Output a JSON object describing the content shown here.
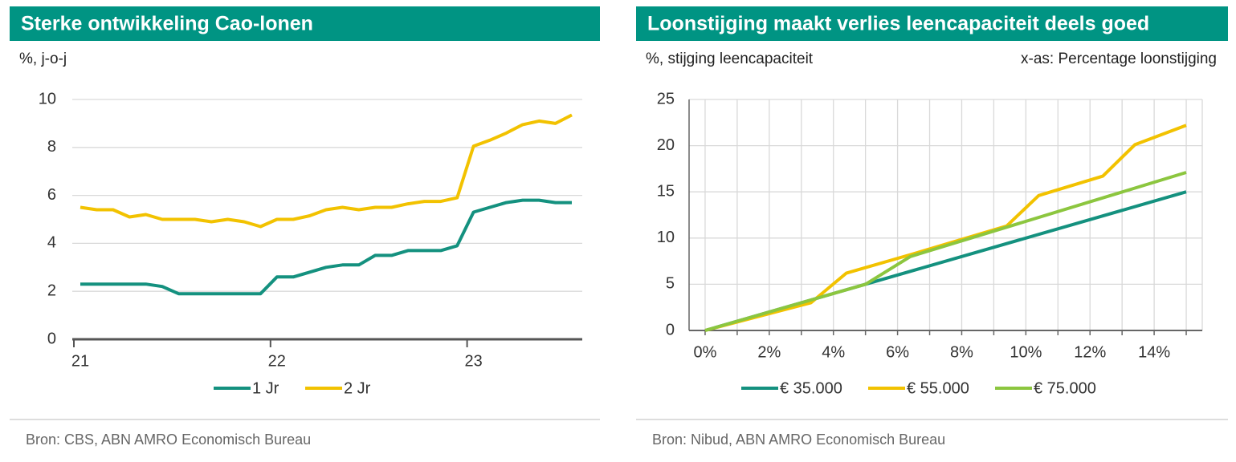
{
  "chart_data": [
    {
      "type": "line",
      "title": "Sterke ontwikkeling Cao-lonen",
      "y_label": "%, j-o-j",
      "source": "Bron: CBS, ABN AMRO Economisch Bureau",
      "categories": [
        "21",
        null,
        null,
        null,
        null,
        null,
        null,
        null,
        null,
        null,
        null,
        null,
        "22",
        null,
        null,
        null,
        null,
        null,
        null,
        null,
        null,
        null,
        null,
        null,
        "23",
        null,
        null,
        null,
        null,
        null,
        null
      ],
      "series": [
        {
          "name": "1 Jr",
          "color": "#14917f",
          "values": [
            2.3,
            2.3,
            2.3,
            2.3,
            2.3,
            2.2,
            1.9,
            1.9,
            1.9,
            1.9,
            1.9,
            1.9,
            2.6,
            2.6,
            2.8,
            3.0,
            3.1,
            3.1,
            3.5,
            3.5,
            3.7,
            3.7,
            3.7,
            3.9,
            5.3,
            5.5,
            5.7,
            5.8,
            5.8,
            5.7,
            5.7
          ]
        },
        {
          "name": "2 Jr",
          "color": "#f2c200",
          "values": [
            5.5,
            5.4,
            5.4,
            5.1,
            5.2,
            5.0,
            5.0,
            5.0,
            4.9,
            5.0,
            4.9,
            4.7,
            5.0,
            5.0,
            5.15,
            5.4,
            5.5,
            5.4,
            5.5,
            5.5,
            5.65,
            5.75,
            5.75,
            5.9,
            8.05,
            8.3,
            8.6,
            8.95,
            9.1,
            9.0,
            9.35
          ]
        }
      ],
      "ylim": [
        0,
        10
      ],
      "yticks": [
        0,
        2,
        4,
        6,
        8,
        10
      ],
      "grid": "y",
      "legend": "bottom"
    },
    {
      "type": "scatter-line",
      "title": "Loonstijging maakt verlies leencapaciteit deels goed",
      "y_label": "%, stijging leencapaciteit",
      "x_label": "x-as: Percentage loonstijging",
      "source": "Bron: Nibud, ABN AMRO Economisch Bureau",
      "series": [
        {
          "name": "€ 35.000",
          "color": "#14917f",
          "x": [
            0,
            15
          ],
          "values": [
            0,
            15
          ]
        },
        {
          "name": "€ 55.000",
          "color": "#f2c200",
          "x": [
            0,
            3.3,
            4.4,
            6.4,
            9.4,
            10.4,
            12.4,
            13.4,
            15
          ],
          "values": [
            0,
            3,
            6.2,
            8.2,
            11.3,
            14.6,
            16.7,
            20.1,
            22.2
          ]
        },
        {
          "name": "€ 75.000",
          "color": "#8cc63f",
          "x": [
            0,
            5,
            6.4,
            15
          ],
          "values": [
            0,
            5,
            8,
            17.1
          ]
        }
      ],
      "xlim": [
        -0.5,
        15.5
      ],
      "xticks": [
        {
          "value": 0,
          "label": "0%"
        },
        {
          "value": 2,
          "label": "2%"
        },
        {
          "value": 4,
          "label": "4%"
        },
        {
          "value": 6,
          "label": "6%"
        },
        {
          "value": 8,
          "label": "8%"
        },
        {
          "value": 10,
          "label": "10%"
        },
        {
          "value": 12,
          "label": "12%"
        },
        {
          "value": 14,
          "label": "14%"
        }
      ],
      "ylim": [
        0,
        25
      ],
      "yticks": [
        0,
        5,
        10,
        15,
        20,
        25
      ],
      "grid": "both",
      "legend": "bottom"
    }
  ]
}
